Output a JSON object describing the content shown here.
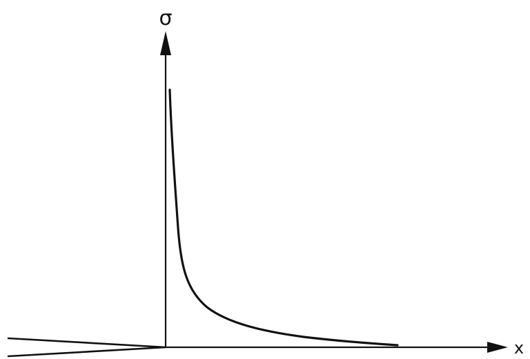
{
  "figure": {
    "y_axis_label": "σ",
    "x_axis_label": "x",
    "line_color": "#111111",
    "background_color": "#ffffff"
  }
}
